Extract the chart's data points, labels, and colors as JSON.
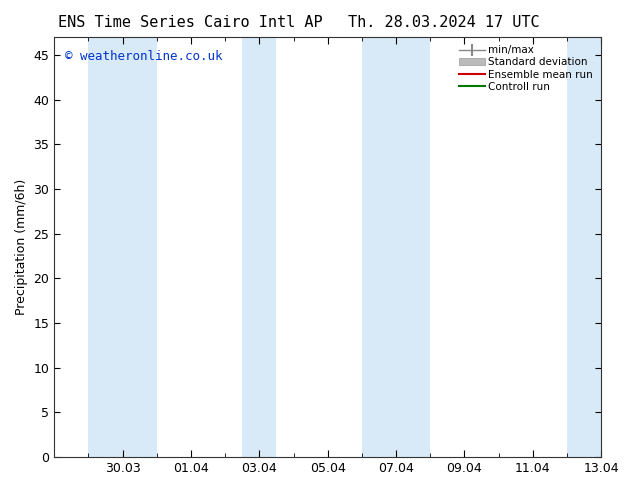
{
  "title_left": "ENS Time Series Cairo Intl AP",
  "title_right": "Th. 28.03.2024 17 UTC",
  "ylabel": "Precipitation (mm/6h)",
  "watermark": "© weatheronline.co.uk",
  "watermark_color": "#0033cc",
  "ylim": [
    0,
    47
  ],
  "yticks": [
    0,
    5,
    10,
    15,
    20,
    25,
    30,
    35,
    40,
    45
  ],
  "xtick_labels": [
    "30.03",
    "01.04",
    "03.04",
    "05.04",
    "07.04",
    "09.04",
    "11.04",
    "13.04"
  ],
  "xtick_positions": [
    2,
    4,
    6,
    8,
    10,
    12,
    14,
    16
  ],
  "xlim": [
    0,
    16
  ],
  "bg_color": "#ffffff",
  "plot_bg_color": "#ffffff",
  "shaded_bands": [
    [
      1.0,
      3.0
    ],
    [
      5.5,
      6.5
    ],
    [
      9.0,
      11.0
    ],
    [
      15.0,
      16.0
    ]
  ],
  "shade_color": "#d8eaf8",
  "legend_labels": [
    "min/max",
    "Standard deviation",
    "Ensemble mean run",
    "Controll run"
  ],
  "legend_colors": [
    "#888888",
    "#bbbbbb",
    "#cc0000",
    "#007700"
  ],
  "title_fontsize": 11,
  "ylabel_fontsize": 9,
  "tick_fontsize": 9,
  "watermark_fontsize": 9
}
